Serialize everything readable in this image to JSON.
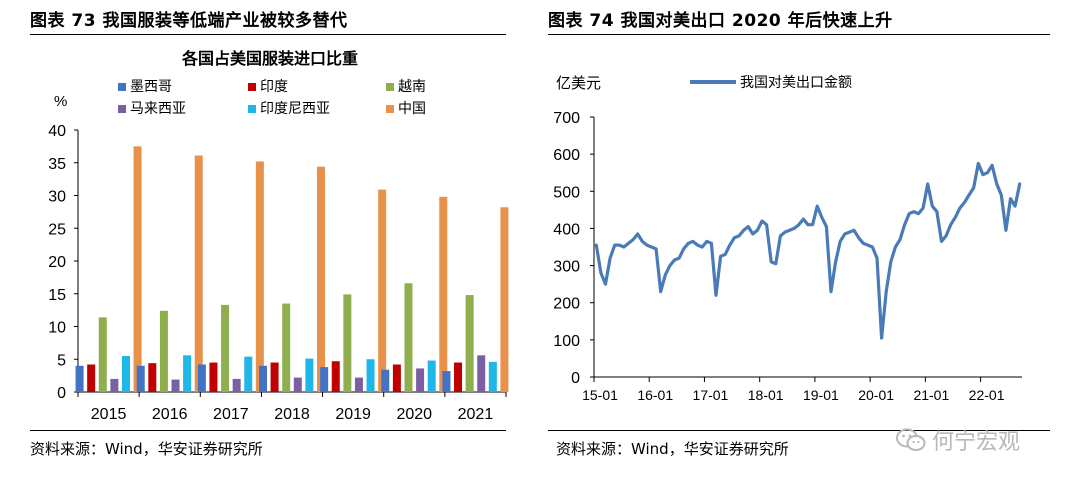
{
  "left_panel": {
    "title": "图表 73  我国服装等低端产业被较多替代",
    "source": "资料来源：Wind，华安证券研究所"
  },
  "right_panel": {
    "title": "图表 74  我国对美出口 2020 年后快速上升",
    "source": "资料来源：Wind，华安证券研究所"
  },
  "watermark": {
    "text": "何宁宏观",
    "icon": "wechat-icon"
  },
  "chart_data": [
    {
      "type": "bar",
      "title": "各国占美国服装进口比重",
      "ylabel": "%",
      "xlabel": "",
      "ylim": [
        0,
        40
      ],
      "yticks": [
        0,
        5,
        10,
        15,
        20,
        25,
        30,
        35,
        40
      ],
      "categories": [
        "2015",
        "2016",
        "2017",
        "2018",
        "2019",
        "2020",
        "2021"
      ],
      "legend_position": "top",
      "series": [
        {
          "name": "墨西哥",
          "color": "#4472c4",
          "values": [
            4.0,
            4.0,
            4.2,
            4.0,
            3.8,
            3.4,
            3.2
          ]
        },
        {
          "name": "印度",
          "color": "#c00000",
          "values": [
            4.2,
            4.4,
            4.5,
            4.5,
            4.7,
            4.2,
            4.5
          ]
        },
        {
          "name": "越南",
          "color": "#8faf4e",
          "values": [
            11.4,
            12.4,
            13.3,
            13.5,
            14.9,
            16.6,
            14.8
          ]
        },
        {
          "name": "马来西亚",
          "color": "#7b5fa3",
          "values": [
            2.0,
            1.9,
            2.0,
            2.2,
            2.2,
            3.6,
            5.6
          ]
        },
        {
          "name": "印度尼西亚",
          "color": "#1fb6e8",
          "values": [
            5.5,
            5.6,
            5.4,
            5.1,
            5.0,
            4.8,
            4.6
          ]
        },
        {
          "name": "中国",
          "color": "#e8914b",
          "values": [
            37.5,
            36.1,
            35.2,
            34.4,
            30.9,
            29.8,
            28.2
          ]
        }
      ]
    },
    {
      "type": "line",
      "title": "",
      "ylabel": "亿美元",
      "xlabel": "",
      "ylim": [
        0,
        700
      ],
      "yticks": [
        0,
        100,
        200,
        300,
        400,
        500,
        600,
        700
      ],
      "xtick_labels": [
        "15-01",
        "16-01",
        "17-01",
        "18-01",
        "19-01",
        "20-01",
        "21-01",
        "22-01"
      ],
      "legend_position": "top",
      "series": [
        {
          "name": "我国对美出口金额",
          "color": "#4a7ab8",
          "values": [
            355,
            280,
            250,
            320,
            355,
            355,
            350,
            360,
            370,
            385,
            365,
            355,
            350,
            345,
            230,
            275,
            300,
            315,
            320,
            345,
            360,
            365,
            355,
            350,
            365,
            360,
            220,
            325,
            330,
            355,
            375,
            380,
            395,
            405,
            385,
            395,
            420,
            410,
            310,
            305,
            380,
            390,
            395,
            400,
            410,
            425,
            410,
            410,
            460,
            430,
            405,
            230,
            310,
            365,
            385,
            390,
            395,
            375,
            360,
            355,
            350,
            320,
            105,
            230,
            310,
            350,
            370,
            410,
            440,
            445,
            440,
            455,
            520,
            460,
            445,
            365,
            380,
            410,
            430,
            455,
            470,
            490,
            510,
            575,
            545,
            550,
            570,
            520,
            490,
            395,
            480,
            460,
            520
          ]
        }
      ]
    }
  ]
}
